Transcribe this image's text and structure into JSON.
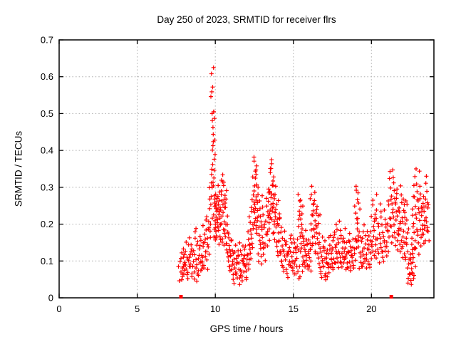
{
  "chart_data": {
    "type": "scatter",
    "title": "Day 250 of 2023, SRMTID for receiver flrs",
    "xlabel": "GPS time / hours",
    "ylabel": "SRMTID / TECUs",
    "xlim": [
      0,
      24
    ],
    "ylim": [
      0,
      0.7
    ],
    "xticks": [
      {
        "v": 0,
        "label": "0"
      },
      {
        "v": 5,
        "label": "5"
      },
      {
        "v": 10,
        "label": "10"
      },
      {
        "v": 15,
        "label": "15"
      },
      {
        "v": 20,
        "label": "20"
      }
    ],
    "yticks": [
      {
        "v": 0,
        "label": "0"
      },
      {
        "v": 0.1,
        "label": "0.1"
      },
      {
        "v": 0.2,
        "label": "0.2"
      },
      {
        "v": 0.3,
        "label": "0.3"
      },
      {
        "v": 0.4,
        "label": "0.4"
      },
      {
        "v": 0.5,
        "label": "0.5"
      },
      {
        "v": 0.6,
        "label": "0.6"
      },
      {
        "v": 0.7,
        "label": "0.7"
      }
    ],
    "grid": true,
    "legend": "none",
    "marker": "plus",
    "value_scale": 0.01,
    "squares_at_zero_hours": [
      7.8,
      21.27
    ],
    "series": [
      {
        "t0": 7.74,
        "dt": 0.02,
        "values_x100": [
          8,
          5,
          10,
          7,
          12,
          6,
          9,
          11,
          5,
          8,
          13,
          7,
          10,
          6,
          11,
          9
        ]
      },
      {
        "t0": 8.06,
        "dt": 0.02,
        "values_x100": [
          7,
          12,
          9,
          15,
          6,
          10,
          13,
          8,
          11,
          5,
          14,
          9,
          12,
          7,
          10,
          16,
          8,
          13,
          6,
          11,
          9,
          14,
          7,
          12,
          10,
          5,
          13,
          8
        ]
      },
      {
        "t0": 8.62,
        "dt": 0.02,
        "values_x100": [
          9,
          13,
          7,
          16,
          10,
          5,
          12,
          18,
          8,
          14,
          6,
          11,
          19,
          9,
          15,
          7,
          12,
          17,
          10,
          6,
          13,
          9,
          16,
          8,
          11,
          14,
          7,
          12,
          9,
          15
        ]
      },
      {
        "t0": 9.22,
        "dt": 0.018,
        "values_x100": [
          10,
          14,
          8,
          17,
          12,
          20,
          9,
          15,
          11,
          18,
          13,
          8,
          16,
          21,
          10,
          14,
          19,
          12,
          22,
          16
        ]
      },
      {
        "t0": 9.58,
        "dt": 0.015,
        "values_x100": [
          14,
          19,
          24,
          16,
          28,
          21,
          30,
          18,
          25,
          33,
          22,
          27,
          20,
          31
        ]
      },
      {
        "t0": 9.79,
        "dt": 0.006,
        "values_x100": [
          35,
          48,
          41,
          62,
          55,
          61,
          50,
          57,
          44,
          51,
          49,
          56,
          40,
          46,
          50,
          38,
          43,
          30,
          36,
          42,
          33,
          28,
          39,
          25,
          31,
          22,
          35,
          27,
          19,
          24,
          30,
          17,
          26,
          21,
          28,
          16,
          23,
          19,
          25,
          20
        ]
      },
      {
        "t0": 10.04,
        "dt": 0.012,
        "values_x100": [
          18,
          24,
          20,
          28,
          16,
          22,
          26,
          19,
          30,
          23,
          17,
          27,
          21,
          25,
          15,
          29,
          20,
          24,
          18,
          26,
          22,
          16,
          28,
          19,
          23,
          25
        ]
      },
      {
        "t0": 10.36,
        "dt": 0.012,
        "values_x100": [
          20,
          26,
          31,
          17,
          24,
          29,
          22,
          33,
          19,
          27,
          32,
          15,
          25,
          30,
          21,
          28,
          16,
          23,
          31,
          18,
          26,
          20,
          29,
          14,
          24,
          17,
          27,
          13,
          22,
          18,
          25,
          15
        ]
      },
      {
        "t0": 10.76,
        "dt": 0.015,
        "values_x100": [
          12,
          17,
          9,
          15,
          20,
          11,
          16,
          8,
          13,
          18,
          10,
          14,
          7,
          12,
          16,
          9,
          13,
          11,
          15,
          8,
          10,
          12
        ]
      },
      {
        "t0": 11.1,
        "dt": 0.02,
        "values_x100": [
          6,
          10,
          8,
          13,
          5,
          9,
          12,
          7,
          11,
          4,
          8,
          14,
          6,
          10,
          13,
          7,
          9,
          5,
          12,
          8,
          15,
          6,
          11,
          9,
          4,
          13,
          7,
          10,
          5,
          8,
          12,
          6,
          14,
          9,
          11,
          5,
          10,
          7,
          13,
          8,
          6,
          11,
          9,
          14,
          7,
          10,
          12,
          8,
          5,
          9
        ]
      },
      {
        "t0": 12.1,
        "dt": 0.015,
        "values_x100": [
          10,
          15,
          12,
          18,
          9,
          14,
          20,
          11,
          16,
          22,
          13,
          18,
          25,
          15,
          20,
          12,
          17,
          23,
          14,
          19,
          26,
          16
        ]
      },
      {
        "t0": 12.44,
        "dt": 0.01,
        "values_x100": [
          20,
          27,
          33,
          24,
          38,
          30,
          22,
          35,
          28,
          37,
          25,
          32,
          20,
          36,
          29,
          23,
          34,
          27,
          31,
          21,
          28,
          24,
          33,
          19,
          26,
          30,
          22,
          27,
          18,
          24
        ]
      },
      {
        "t0": 12.76,
        "dt": 0.015,
        "values_x100": [
          16,
          22,
          12,
          19,
          26,
          14,
          21,
          10,
          17,
          24,
          13,
          20,
          28,
          15,
          22,
          11,
          18,
          25,
          12,
          19,
          9,
          16,
          23,
          14,
          20,
          10,
          17,
          13
        ]
      },
      {
        "t0": 13.28,
        "dt": 0.013,
        "values_x100": [
          15,
          21,
          27,
          17,
          23,
          30,
          19,
          25,
          14,
          22,
          28,
          16,
          24,
          18,
          26,
          20,
          29,
          22
        ]
      },
      {
        "t0": 13.52,
        "dt": 0.01,
        "values_x100": [
          22,
          29,
          35,
          25,
          37,
          31,
          23,
          34,
          27,
          36,
          24,
          32,
          28,
          35,
          21,
          30,
          26,
          33,
          20,
          28,
          24,
          31,
          18,
          27,
          23,
          30,
          17,
          25,
          21,
          28
        ]
      },
      {
        "t0": 13.86,
        "dt": 0.015,
        "values_x100": [
          16,
          22,
          19,
          25,
          13,
          20,
          24,
          15,
          21,
          11,
          18,
          23,
          14,
          20,
          26,
          16,
          22,
          12,
          19,
          15,
          21,
          13,
          18,
          10,
          16,
          12
        ]
      },
      {
        "t0": 14.28,
        "dt": 0.02,
        "values_x100": [
          10,
          14,
          8,
          12,
          16,
          9,
          13,
          7,
          11,
          15,
          8,
          12,
          18,
          10,
          14,
          7,
          12,
          9,
          15,
          11,
          6,
          13,
          10,
          16,
          8,
          12,
          14,
          9,
          17,
          11,
          7,
          13,
          10,
          15,
          8,
          12,
          6,
          14,
          10,
          16,
          9,
          13,
          7,
          11,
          15,
          10,
          12,
          8
        ]
      },
      {
        "t0": 15.28,
        "dt": 0.012,
        "values_x100": [
          14,
          7,
          19,
          24,
          6,
          16,
          28,
          21,
          8,
          17,
          25,
          13,
          5,
          22,
          27,
          15,
          20,
          7,
          26,
          12,
          18,
          23,
          9,
          16,
          21,
          14,
          19,
          25
        ]
      },
      {
        "t0": 15.62,
        "dt": 0.018,
        "values_x100": [
          11,
          15,
          9,
          13,
          17,
          10,
          14,
          8,
          12,
          16,
          9,
          13,
          18,
          11,
          15,
          8,
          12,
          10,
          14,
          9,
          16,
          11,
          13,
          7,
          12,
          9,
          15,
          10
        ]
      },
      {
        "t0": 16.1,
        "dt": 0.015,
        "values_x100": [
          13,
          18,
          23,
          15,
          27,
          20,
          30,
          16,
          24,
          19,
          28,
          14,
          22,
          26,
          17,
          21,
          12,
          25,
          18,
          29,
          15,
          23,
          19,
          26,
          13,
          20,
          24,
          16,
          22,
          14,
          18,
          25,
          12,
          20,
          17,
          23
        ]
      },
      {
        "t0": 16.64,
        "dt": 0.02,
        "values_x100": [
          9,
          13,
          7,
          11,
          15,
          8,
          12,
          6,
          10,
          14,
          7,
          11,
          16,
          9,
          13,
          6,
          10,
          8,
          14,
          11,
          5,
          12,
          9,
          15,
          7,
          11,
          13,
          8,
          16,
          10,
          6,
          12,
          9,
          14,
          8,
          11,
          7,
          13
        ]
      },
      {
        "t0": 17.4,
        "dt": 0.02,
        "values_x100": [
          10,
          14,
          8,
          17,
          12,
          9,
          15,
          11,
          18,
          13,
          8,
          16,
          10,
          14,
          20,
          12,
          17,
          9,
          13,
          11,
          16,
          8,
          14,
          19,
          10,
          15,
          12,
          18,
          9,
          13,
          21,
          11,
          16,
          8,
          14,
          10,
          17,
          12,
          15,
          9,
          13,
          19,
          11,
          16,
          10,
          14,
          8,
          12,
          15,
          11
        ]
      },
      {
        "t0": 18.4,
        "dt": 0.02,
        "values_x100": [
          9,
          13,
          11,
          15,
          8,
          12,
          16,
          10,
          14,
          8,
          12,
          17,
          9,
          13,
          11,
          15,
          7,
          12,
          10,
          16,
          8,
          13,
          11,
          14,
          9,
          12,
          10,
          15
        ]
      },
      {
        "t0": 18.98,
        "dt": 0.013,
        "values_x100": [
          14,
          19,
          25,
          16,
          30,
          21,
          27,
          17,
          23,
          29,
          15,
          22,
          26,
          18,
          24,
          20,
          28,
          16
        ]
      },
      {
        "t0": 19.24,
        "dt": 0.02,
        "values_x100": [
          10,
          14,
          8,
          12,
          16,
          9,
          13,
          18,
          11,
          15,
          8,
          12,
          20,
          10,
          16,
          9,
          14,
          11,
          17,
          8,
          13,
          10,
          15,
          12,
          18,
          9,
          14,
          11,
          16,
          10,
          13,
          8,
          15,
          11,
          17,
          9,
          12,
          14
        ]
      },
      {
        "t0": 20.0,
        "dt": 0.018,
        "values_x100": [
          13,
          18,
          22,
          15,
          26,
          17,
          21,
          14,
          25,
          19,
          12,
          23,
          16,
          28,
          18,
          21,
          13,
          24,
          16,
          20,
          14,
          22
        ]
      },
      {
        "t0": 20.4,
        "dt": 0.02,
        "values_x100": [
          11,
          16,
          13,
          19,
          10,
          15,
          22,
          12,
          17,
          25,
          14,
          20,
          11,
          16,
          23,
          13,
          18,
          10,
          15,
          21,
          12,
          17,
          24,
          14,
          19,
          11,
          16,
          13,
          20,
          15,
          18,
          12
        ]
      },
      {
        "t0": 21.06,
        "dt": 0.016,
        "values_x100": [
          14,
          20,
          26,
          16,
          22,
          30,
          18,
          25,
          32,
          20,
          27,
          15,
          23,
          34,
          21,
          28,
          17,
          24,
          31,
          19,
          26,
          35,
          22,
          29,
          16,
          25,
          33,
          20,
          27,
          14,
          23,
          30,
          18,
          26,
          21,
          28,
          15,
          24,
          19,
          27,
          22,
          17
        ]
      },
      {
        "t0": 21.74,
        "dt": 0.015,
        "values_x100": [
          13,
          18,
          24,
          15,
          21,
          28,
          17,
          23,
          12,
          19,
          26,
          14,
          20,
          30,
          16,
          22,
          11,
          18,
          25,
          13,
          21,
          27,
          15,
          23,
          10,
          17,
          24,
          12,
          20,
          26,
          14,
          18,
          22,
          11,
          16,
          25,
          13,
          19,
          15,
          21
        ]
      },
      {
        "t0": 22.36,
        "dt": 0.015,
        "values_x100": [
          8,
          5,
          10,
          7,
          12,
          4,
          9,
          6,
          11,
          5,
          8,
          13,
          6,
          10,
          4,
          7,
          12,
          5,
          9,
          15,
          7,
          11,
          6,
          13,
          8,
          10
        ]
      },
      {
        "t0": 22.62,
        "dt": 0.016,
        "values_x100": [
          16,
          22,
          28,
          18,
          33,
          24,
          19,
          30,
          14,
          25,
          35,
          20,
          27,
          16,
          23,
          31,
          18,
          26,
          13,
          22,
          29,
          17,
          24,
          34,
          19,
          27,
          15,
          23,
          30,
          18,
          25,
          12,
          21,
          28,
          16,
          24,
          20,
          27,
          14,
          22,
          18,
          26,
          15,
          21,
          17,
          24,
          28,
          19,
          25,
          31,
          17,
          23,
          20,
          27,
          33,
          18,
          24,
          16,
          22,
          29,
          19,
          25,
          15,
          21,
          26,
          18
        ]
      }
    ]
  },
  "colors": {
    "marker": "#ff0000",
    "grid": "#b0b0b0",
    "axis": "#000000",
    "background": "#ffffff"
  }
}
